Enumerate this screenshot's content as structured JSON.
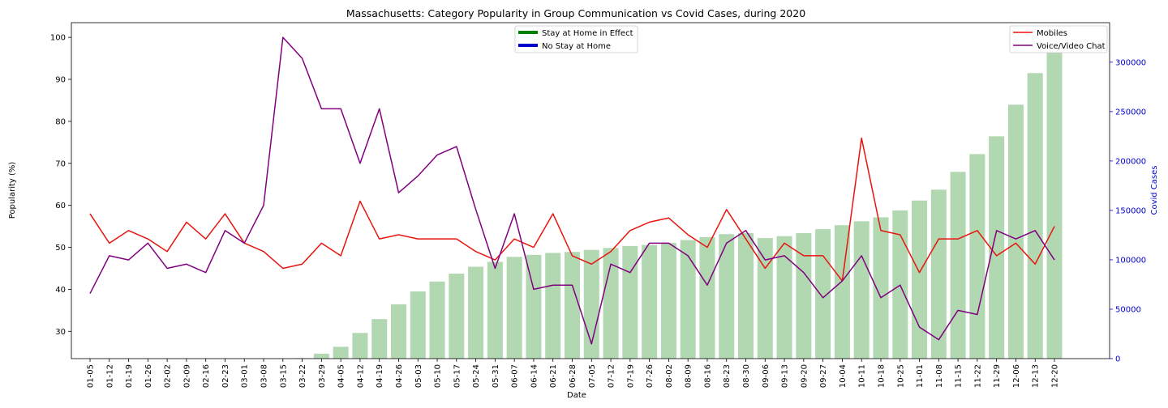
{
  "chart_data": {
    "type": "bar+line",
    "title": "Massachusetts: Category Popularity in Group Communication vs Covid Cases, during 2020",
    "xlabel": "Date",
    "ylabel": "Popularity (%)",
    "y2label": "Covid Cases",
    "ylim": [
      23.5,
      103.5
    ],
    "y2lim": [
      0,
      340000
    ],
    "yticks": [
      30,
      40,
      50,
      60,
      70,
      80,
      90,
      100
    ],
    "y2ticks": [
      0,
      50000,
      100000,
      150000,
      200000,
      250000,
      300000
    ],
    "categories": [
      "01-05",
      "01-12",
      "01-19",
      "01-26",
      "02-02",
      "02-09",
      "02-16",
      "02-23",
      "03-01",
      "03-08",
      "03-15",
      "03-22",
      "03-29",
      "04-05",
      "04-12",
      "04-19",
      "04-26",
      "05-03",
      "05-10",
      "05-17",
      "05-24",
      "05-31",
      "06-07",
      "06-14",
      "06-21",
      "06-28",
      "07-05",
      "07-12",
      "07-19",
      "07-26",
      "08-02",
      "08-09",
      "08-16",
      "08-23",
      "08-30",
      "09-06",
      "09-13",
      "09-20",
      "09-27",
      "10-04",
      "10-11",
      "10-18",
      "10-25",
      "11-01",
      "11-08",
      "11-15",
      "11-22",
      "11-29",
      "12-06",
      "12-13",
      "12-20"
    ],
    "bars": {
      "name": "Covid Cases",
      "color": "#b2d8b2",
      "values": [
        0,
        0,
        0,
        0,
        0,
        0,
        0,
        0,
        0,
        0,
        0,
        500,
        5000,
        12000,
        26000,
        40000,
        55000,
        68000,
        78000,
        86000,
        93000,
        98000,
        103000,
        105000,
        107000,
        108000,
        110000,
        112000,
        114000,
        115000,
        117000,
        120000,
        123000,
        126000,
        127000,
        122000,
        124000,
        127000,
        131000,
        135000,
        139000,
        143000,
        150000,
        160000,
        171000,
        189000,
        207000,
        225000,
        257000,
        289000,
        322000
      ]
    },
    "series": [
      {
        "name": "Mobiles",
        "color": "#e8140f",
        "values": [
          58,
          51,
          54,
          52,
          49,
          56,
          52,
          58,
          51,
          49,
          45,
          46,
          51,
          48,
          61,
          52,
          53,
          52,
          52,
          52,
          49,
          47,
          52,
          50,
          58,
          48,
          46,
          49,
          54,
          56,
          57,
          53,
          50,
          59,
          52,
          45,
          51,
          48,
          48,
          42,
          76,
          54,
          53,
          44,
          52,
          52,
          54,
          48,
          51,
          46,
          55
        ]
      },
      {
        "name": "Voice/Video Chat",
        "color": "#800080",
        "values": [
          39,
          48,
          47,
          51,
          45,
          46,
          44,
          54,
          51,
          60,
          100,
          95,
          83,
          83,
          70,
          83,
          63,
          67,
          72,
          74,
          59,
          45,
          58,
          40,
          41,
          41,
          27,
          46,
          44,
          51,
          51,
          48,
          41,
          51,
          54,
          47,
          48,
          44,
          38,
          42,
          48,
          38,
          41,
          31,
          28,
          35,
          34,
          54,
          52,
          54,
          47
        ]
      }
    ],
    "legends": [
      {
        "placement": "upper-center",
        "entries": [
          {
            "label": "Stay at Home in Effect",
            "color": "#008000"
          },
          {
            "label": "No Stay at Home",
            "color": "#0000cd"
          }
        ]
      },
      {
        "placement": "upper-right",
        "entries": [
          {
            "label": "Mobiles",
            "color": "#e8140f"
          },
          {
            "label": "Voice/Video Chat",
            "color": "#800080"
          }
        ]
      }
    ],
    "grid": false,
    "overlap_color": "#5a2d55",
    "y2_color": "#0000cd"
  }
}
